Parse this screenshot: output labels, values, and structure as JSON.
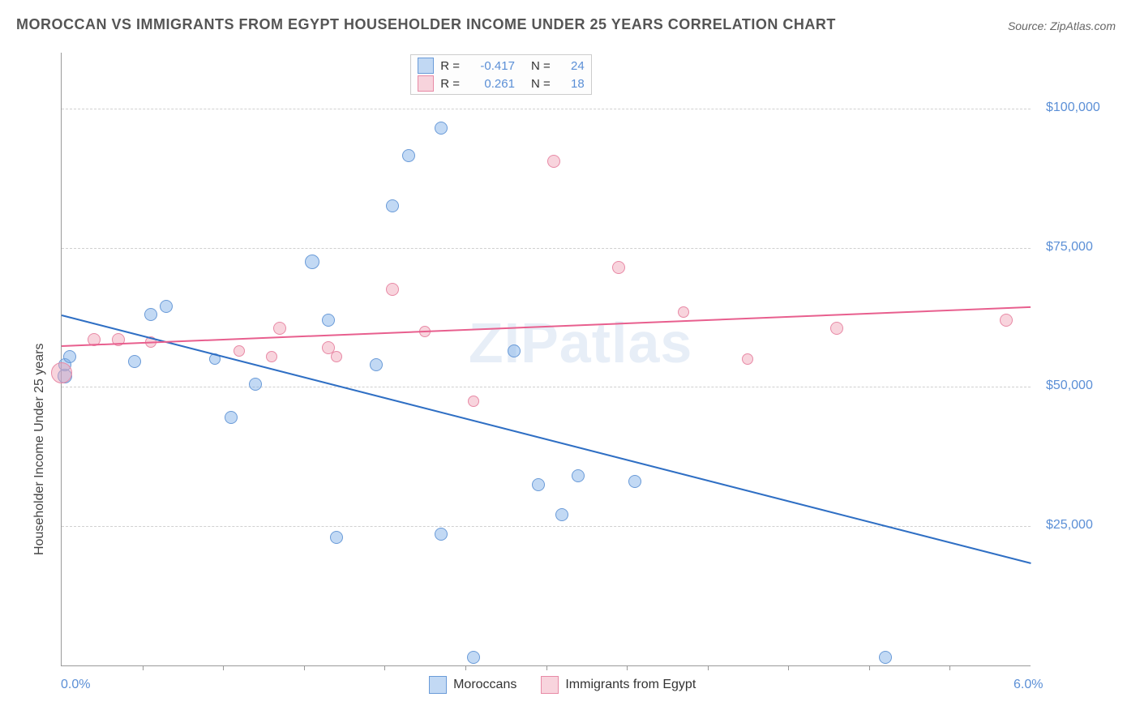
{
  "title": "MOROCCAN VS IMMIGRANTS FROM EGYPT HOUSEHOLDER INCOME UNDER 25 YEARS CORRELATION CHART",
  "source": "Source: ZipAtlas.com",
  "watermark": "ZIPatlas",
  "yaxis_title": "Householder Income Under 25 years",
  "chart": {
    "type": "scatter",
    "xlim": [
      0.0,
      6.0
    ],
    "ylim": [
      0,
      110000
    ],
    "x_tick_start": 0.0,
    "x_tick_end": 6.0,
    "x_tick_minor_start": 0.5,
    "x_tick_minor_step": 0.5,
    "x_tick_minor_end": 5.5,
    "y_ticks": [
      25000,
      50000,
      75000,
      100000
    ],
    "y_tick_labels": [
      "$25,000",
      "$50,000",
      "$75,000",
      "$100,000"
    ],
    "grid_color": "#d0d0d0",
    "background_color": "#ffffff",
    "colors": {
      "blue_fill": "rgba(120,170,230,0.45)",
      "blue_stroke": "#6a9bd8",
      "blue_line": "#2f6fc4",
      "pink_fill": "rgba(240,160,180,0.45)",
      "pink_stroke": "#e88aa6",
      "pink_line": "#e85f8e"
    },
    "legend_top": [
      {
        "swatch": "blue",
        "r_label": "R =",
        "r": "-0.417",
        "n_label": "N =",
        "n": "24"
      },
      {
        "swatch": "pink",
        "r_label": "R =",
        "r": " 0.261",
        "n_label": "N =",
        "n": "18"
      }
    ],
    "legend_bottom": [
      {
        "swatch": "blue",
        "label": "Moroccans"
      },
      {
        "swatch": "pink",
        "label": "Immigrants from Egypt"
      }
    ],
    "trend_lines": {
      "blue": {
        "x1": 0.0,
        "y1": 63000,
        "x2": 6.0,
        "y2": 18500
      },
      "pink": {
        "x1": 0.0,
        "y1": 57500,
        "x2": 6.0,
        "y2": 64500
      }
    },
    "series": [
      {
        "c": "blue",
        "x": 0.02,
        "y": 52000,
        "r": 9
      },
      {
        "c": "blue",
        "x": 0.02,
        "y": 54000,
        "r": 8
      },
      {
        "c": "blue",
        "x": 0.05,
        "y": 55500,
        "r": 8
      },
      {
        "c": "blue",
        "x": 0.45,
        "y": 54500,
        "r": 8
      },
      {
        "c": "blue",
        "x": 0.65,
        "y": 64500,
        "r": 8
      },
      {
        "c": "blue",
        "x": 0.55,
        "y": 63000,
        "r": 8
      },
      {
        "c": "blue",
        "x": 1.05,
        "y": 44500,
        "r": 8
      },
      {
        "c": "blue",
        "x": 0.95,
        "y": 55000,
        "r": 7
      },
      {
        "c": "blue",
        "x": 1.2,
        "y": 50500,
        "r": 8
      },
      {
        "c": "blue",
        "x": 1.55,
        "y": 72500,
        "r": 9
      },
      {
        "c": "blue",
        "x": 1.65,
        "y": 62000,
        "r": 8
      },
      {
        "c": "blue",
        "x": 1.7,
        "y": 23000,
        "r": 8
      },
      {
        "c": "blue",
        "x": 1.95,
        "y": 54000,
        "r": 8
      },
      {
        "c": "blue",
        "x": 2.15,
        "y": 91500,
        "r": 8
      },
      {
        "c": "blue",
        "x": 2.05,
        "y": 82500,
        "r": 8
      },
      {
        "c": "blue",
        "x": 2.35,
        "y": 96500,
        "r": 8
      },
      {
        "c": "blue",
        "x": 2.35,
        "y": 23500,
        "r": 8
      },
      {
        "c": "blue",
        "x": 2.55,
        "y": 1500,
        "r": 8
      },
      {
        "c": "blue",
        "x": 2.8,
        "y": 56500,
        "r": 8
      },
      {
        "c": "blue",
        "x": 2.95,
        "y": 32500,
        "r": 8
      },
      {
        "c": "blue",
        "x": 3.2,
        "y": 34000,
        "r": 8
      },
      {
        "c": "blue",
        "x": 3.1,
        "y": 27000,
        "r": 8
      },
      {
        "c": "blue",
        "x": 3.55,
        "y": 33000,
        "r": 8
      },
      {
        "c": "blue",
        "x": 5.1,
        "y": 1500,
        "r": 8
      },
      {
        "c": "pink",
        "x": 0.0,
        "y": 52500,
        "r": 13
      },
      {
        "c": "pink",
        "x": 0.2,
        "y": 58500,
        "r": 8
      },
      {
        "c": "pink",
        "x": 0.35,
        "y": 58500,
        "r": 8
      },
      {
        "c": "pink",
        "x": 0.55,
        "y": 58000,
        "r": 7
      },
      {
        "c": "pink",
        "x": 1.1,
        "y": 56500,
        "r": 7
      },
      {
        "c": "pink",
        "x": 1.3,
        "y": 55500,
        "r": 7
      },
      {
        "c": "pink",
        "x": 1.35,
        "y": 60500,
        "r": 8
      },
      {
        "c": "pink",
        "x": 1.65,
        "y": 57000,
        "r": 8
      },
      {
        "c": "pink",
        "x": 1.7,
        "y": 55500,
        "r": 7
      },
      {
        "c": "pink",
        "x": 2.05,
        "y": 67500,
        "r": 8
      },
      {
        "c": "pink",
        "x": 2.25,
        "y": 60000,
        "r": 7
      },
      {
        "c": "pink",
        "x": 2.55,
        "y": 47500,
        "r": 7
      },
      {
        "c": "pink",
        "x": 3.05,
        "y": 90500,
        "r": 8
      },
      {
        "c": "pink",
        "x": 3.45,
        "y": 71500,
        "r": 8
      },
      {
        "c": "pink",
        "x": 3.85,
        "y": 63500,
        "r": 7
      },
      {
        "c": "pink",
        "x": 4.25,
        "y": 55000,
        "r": 7
      },
      {
        "c": "pink",
        "x": 4.8,
        "y": 60500,
        "r": 8
      },
      {
        "c": "pink",
        "x": 5.85,
        "y": 62000,
        "r": 8
      }
    ]
  }
}
